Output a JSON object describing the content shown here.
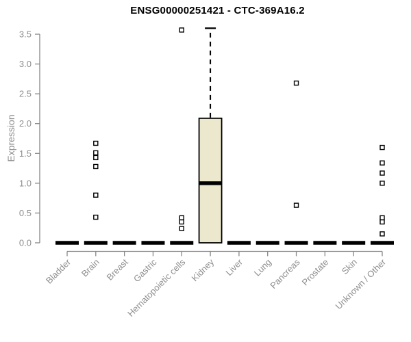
{
  "page": {
    "background": "#ffffff"
  },
  "chart_data": {
    "type": "boxplot",
    "title": "ENSG00000251421 - CTC-369A16.2",
    "ylabel": "Expression",
    "xlabel": "",
    "ylim": [
      0,
      3.5
    ],
    "yticks": [
      0.0,
      0.5,
      1.0,
      1.5,
      2.0,
      2.5,
      3.0,
      3.5
    ],
    "grid": false,
    "legend": false,
    "categories": [
      "Bladder",
      "Brain",
      "Breast",
      "Gastric",
      "Hematopoietic cells",
      "Kidney",
      "Liver",
      "Lung",
      "Pancreas",
      "Prostate",
      "Skin",
      "Unknown / Other"
    ],
    "boxes": [
      {
        "category": "Bladder",
        "q1": 0,
        "median": 0,
        "q3": 0,
        "whisker_low": 0,
        "whisker_high": 0,
        "outliers": []
      },
      {
        "category": "Brain",
        "q1": 0,
        "median": 0,
        "q3": 0,
        "whisker_low": 0,
        "whisker_high": 0,
        "outliers": [
          1.67,
          1.51,
          1.43,
          1.28,
          0.8,
          0.43
        ]
      },
      {
        "category": "Breast",
        "q1": 0,
        "median": 0,
        "q3": 0,
        "whisker_low": 0,
        "whisker_high": 0,
        "outliers": []
      },
      {
        "category": "Gastric",
        "q1": 0,
        "median": 0,
        "q3": 0,
        "whisker_low": 0,
        "whisker_high": 0,
        "outliers": []
      },
      {
        "category": "Hematopoietic cells",
        "q1": 0,
        "median": 0,
        "q3": 0,
        "whisker_low": 0,
        "whisker_high": 0,
        "outliers": [
          3.57,
          0.42,
          0.35,
          0.24
        ]
      },
      {
        "category": "Kidney",
        "q1": 0.0,
        "median": 1.0,
        "q3": 2.09,
        "whisker_low": 0.0,
        "whisker_high": 3.6,
        "outliers": []
      },
      {
        "category": "Liver",
        "q1": 0,
        "median": 0,
        "q3": 0,
        "whisker_low": 0,
        "whisker_high": 0,
        "outliers": []
      },
      {
        "category": "Lung",
        "q1": 0,
        "median": 0,
        "q3": 0,
        "whisker_low": 0,
        "whisker_high": 0,
        "outliers": []
      },
      {
        "category": "Pancreas",
        "q1": 0,
        "median": 0,
        "q3": 0,
        "whisker_low": 0,
        "whisker_high": 0,
        "outliers": [
          2.68,
          0.63
        ]
      },
      {
        "category": "Prostate",
        "q1": 0,
        "median": 0,
        "q3": 0,
        "whisker_low": 0,
        "whisker_high": 0,
        "outliers": []
      },
      {
        "category": "Skin",
        "q1": 0,
        "median": 0,
        "q3": 0,
        "whisker_low": 0,
        "whisker_high": 0,
        "outliers": []
      },
      {
        "category": "Unknown / Other",
        "q1": 0,
        "median": 0,
        "q3": 0,
        "whisker_low": 0,
        "whisker_high": 0,
        "outliers": [
          1.6,
          1.34,
          1.17,
          1.0,
          0.42,
          0.35,
          0.15
        ]
      }
    ],
    "colors": {
      "box_fill": "#ece8cd",
      "box_stroke": "#000000",
      "median": "#000000",
      "whisker": "#000000",
      "outlier_stroke": "#000000",
      "outlier_fill": "#ffffff",
      "axis": "#878787",
      "tick_label": "#8e8e8e",
      "title": "#000000"
    }
  }
}
